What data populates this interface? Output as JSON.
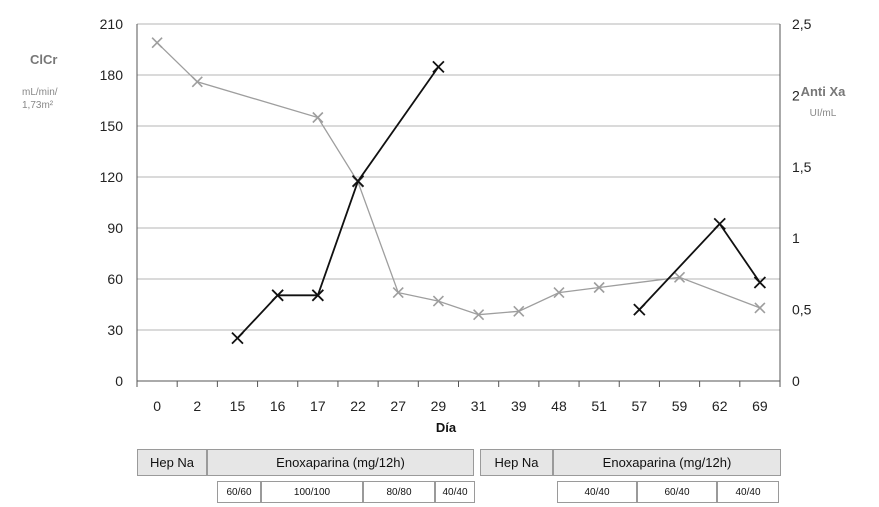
{
  "chart_data": {
    "type": "line",
    "xlabel": "Día",
    "categories": [
      "0",
      "2",
      "15",
      "16",
      "17",
      "22",
      "27",
      "29",
      "31",
      "39",
      "48",
      "51",
      "57",
      "59",
      "62",
      "69"
    ],
    "y_left": {
      "label": "ClCr",
      "unit_lines": [
        "mL/min/",
        "1,73m²"
      ],
      "ylim": [
        0,
        210
      ],
      "ticks": [
        "0",
        "30",
        "60",
        "90",
        "120",
        "150",
        "180",
        "210"
      ]
    },
    "y_right": {
      "label": "Anti Xa",
      "unit": "UI/mL",
      "ylim": [
        0,
        2.5
      ],
      "ticks": [
        "0",
        "0,5",
        "1",
        "1,5",
        "2",
        "2,5"
      ]
    },
    "grid": true,
    "series": [
      {
        "axis": "left",
        "color": "#9e9e9e",
        "marker": "x",
        "values": [
          199,
          176,
          null,
          null,
          155,
          117,
          52,
          47,
          39,
          41,
          52,
          55,
          null,
          61,
          null,
          43
        ]
      },
      {
        "axis": "right",
        "color": "#111111",
        "marker": "x",
        "segments": [
          [
            [
              2,
              0.3
            ],
            [
              3,
              0.6
            ],
            [
              4,
              0.6
            ],
            [
              5,
              1.4
            ],
            [
              7,
              2.2
            ]
          ],
          [
            [
              12,
              0.5
            ],
            [
              14,
              1.1
            ],
            [
              15,
              0.69
            ]
          ]
        ]
      }
    ]
  },
  "dose_table": {
    "top_row": [
      {
        "text": "Hep Na"
      },
      {
        "text": "Enoxaparina (mg/12h)"
      },
      {
        "text": "Hep Na"
      },
      {
        "text": "Enoxaparina (mg/12h)"
      }
    ],
    "bottom_row": [
      "60/60",
      "100/100",
      "80/80",
      "40/40",
      "40/40",
      "60/40",
      "40/40"
    ]
  }
}
